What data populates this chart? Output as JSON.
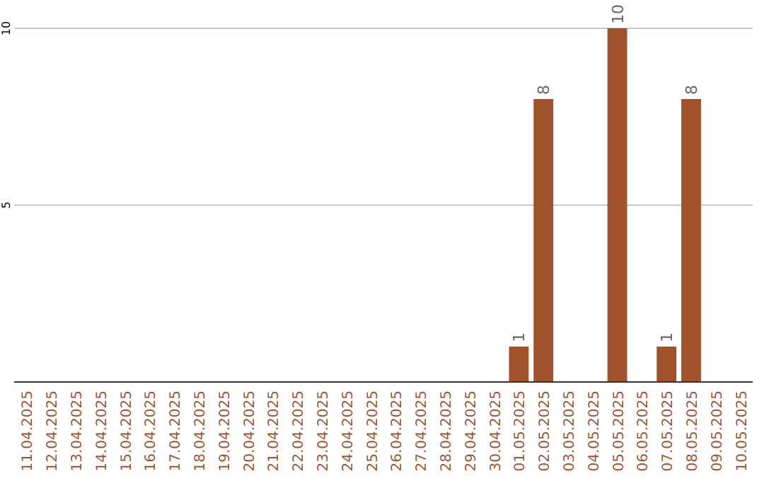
{
  "chart_data": {
    "type": "bar",
    "categories": [
      "11.04.2025",
      "12.04.2025",
      "13.04.2025",
      "14.04.2025",
      "15.04.2025",
      "16.04.2025",
      "17.04.2025",
      "18.04.2025",
      "19.04.2025",
      "20.04.2025",
      "21.04.2025",
      "22.04.2025",
      "23.04.2025",
      "24.04.2025",
      "25.04.2025",
      "26.04.2025",
      "27.04.2025",
      "28.04.2025",
      "29.04.2025",
      "30.04.2025",
      "01.05.2025",
      "02.05.2025",
      "03.05.2025",
      "04.05.2025",
      "05.05.2025",
      "06.05.2025",
      "07.05.2025",
      "08.05.2025",
      "09.05.2025",
      "10.05.2025"
    ],
    "values": [
      0,
      0,
      0,
      0,
      0,
      0,
      0,
      0,
      0,
      0,
      0,
      0,
      0,
      0,
      0,
      0,
      0,
      0,
      0,
      0,
      1,
      8,
      0,
      0,
      10,
      0,
      1,
      8,
      0,
      0
    ],
    "value_labels": [
      null,
      null,
      null,
      null,
      null,
      null,
      null,
      null,
      null,
      null,
      null,
      null,
      null,
      null,
      null,
      null,
      null,
      null,
      null,
      null,
      "1",
      "8",
      null,
      null,
      "10",
      null,
      "1",
      "8",
      null,
      null
    ],
    "color": "#a0522d",
    "ylim": [
      0,
      10
    ],
    "yticks": [
      5,
      10
    ],
    "grid": "y"
  }
}
